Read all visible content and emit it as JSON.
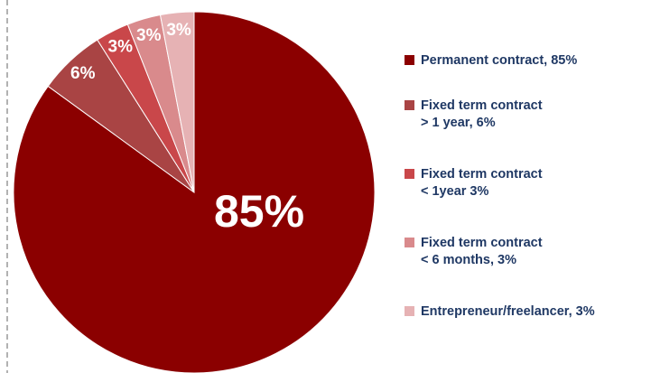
{
  "chart_data": {
    "type": "pie",
    "categories": [
      "Permanent contract, 85%",
      "Fixed term contract\n> 1 year, 6%",
      "Fixed term contract\n< 1year 3%",
      "Fixed term contract\n< 6 months, 3%",
      "Entrepreneur/freelancer, 3%"
    ],
    "values": [
      85,
      6,
      3,
      3,
      3
    ],
    "value_labels": [
      "85%",
      "6%",
      "3%",
      "3%",
      "3%"
    ],
    "colors": [
      "#8b0000",
      "#a94444",
      "#c9474a",
      "#d98a8c",
      "#e6b2b4"
    ],
    "legend": "right"
  }
}
